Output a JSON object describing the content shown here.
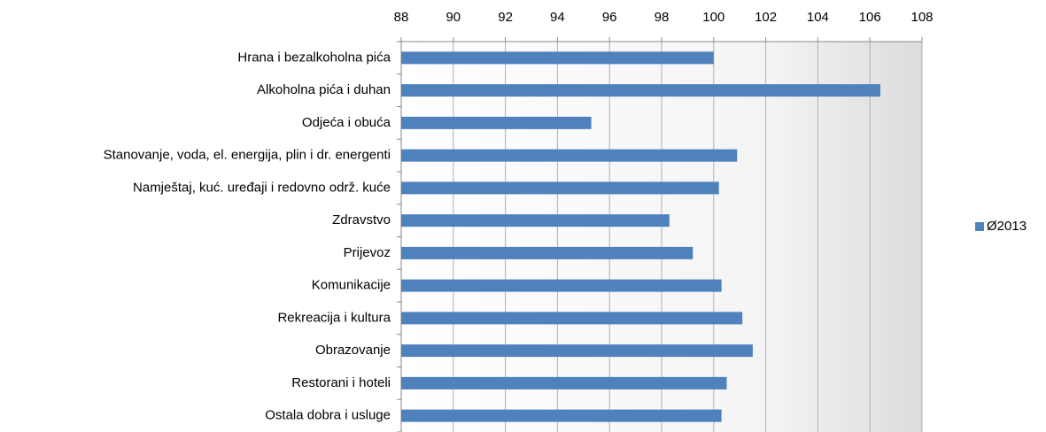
{
  "chart_data": {
    "type": "bar",
    "orientation": "horizontal",
    "categories": [
      "Hrana i bezalkoholna pića",
      "Alkoholna pića i duhan",
      "Odjeća i obuća",
      "Stanovanje, voda, el. energija, plin i dr. energenti",
      "Namještaj, kuć. uređaji i redovno održ. kuće",
      "Zdravstvo",
      "Prijevoz",
      "Komunikacije",
      "Rekreacija i kultura",
      "Obrazovanje",
      "Restorani i hoteli",
      "Ostala dobra i usluge"
    ],
    "series": [
      {
        "name": "Ø2013",
        "color": "#4f81bd",
        "values": [
          100.0,
          106.4,
          95.3,
          100.9,
          100.2,
          98.3,
          99.2,
          100.3,
          101.1,
          101.5,
          100.5,
          100.3
        ]
      }
    ],
    "xlim": [
      88,
      108
    ],
    "xticks": [
      88,
      90,
      92,
      94,
      96,
      98,
      100,
      102,
      104,
      106,
      108
    ],
    "grid": true,
    "legend": "right"
  }
}
